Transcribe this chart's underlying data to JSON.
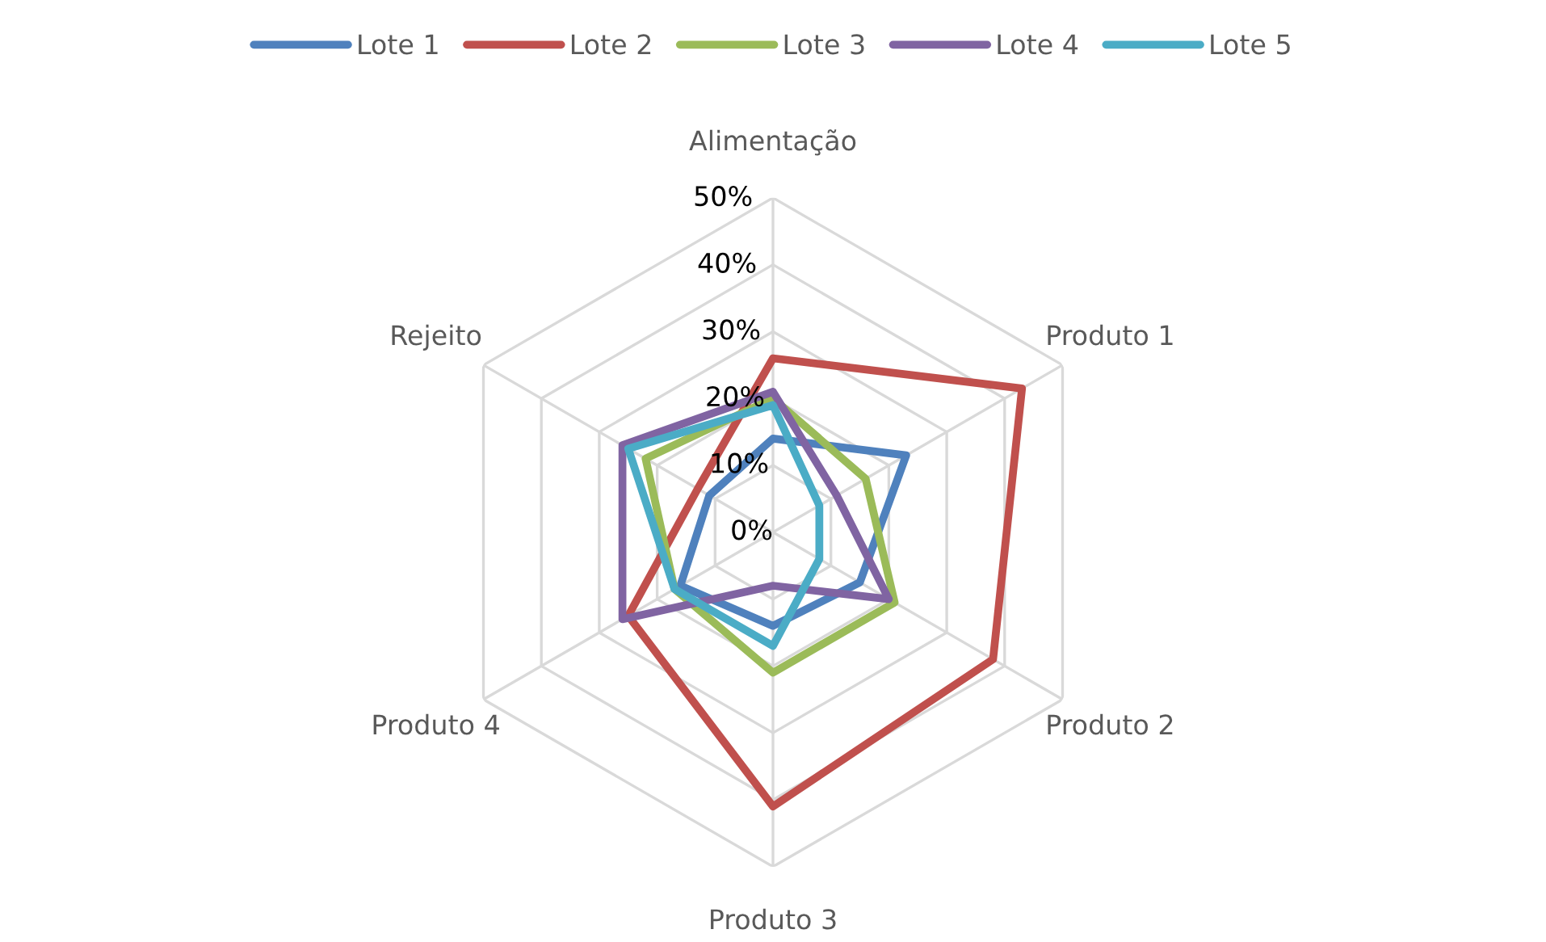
{
  "chart_data": {
    "type": "radar",
    "categories": [
      "Alimentação",
      "Produto 1",
      "Produto 2",
      "Produto 3",
      "Produto 4",
      "Rejeito"
    ],
    "series": [
      {
        "name": "Lote 1",
        "color": "#4f81bd",
        "values": [
          14,
          23,
          15,
          14,
          16,
          11
        ]
      },
      {
        "name": "Lote 2",
        "color": "#c0504d",
        "values": [
          26,
          43,
          38,
          41,
          25,
          13
        ]
      },
      {
        "name": "Lote 3",
        "color": "#9bbb59",
        "values": [
          20,
          16,
          21,
          21,
          17,
          22
        ]
      },
      {
        "name": "Lote 4",
        "color": "#8064a2",
        "values": [
          21,
          11,
          20,
          8,
          26,
          26
        ]
      },
      {
        "name": "Lote 5",
        "color": "#4bacc6",
        "values": [
          19,
          8,
          8,
          17,
          17,
          25
        ]
      }
    ],
    "ylim": [
      0,
      50
    ],
    "yticks": [
      {
        "value": 0,
        "label": "0%"
      },
      {
        "value": 10,
        "label": "10%"
      },
      {
        "value": 20,
        "label": "20%"
      },
      {
        "value": 30,
        "label": "30%"
      },
      {
        "value": 40,
        "label": "40%"
      },
      {
        "value": 50,
        "label": "50%"
      }
    ],
    "grid": true,
    "legend": "top",
    "marker": "none"
  }
}
